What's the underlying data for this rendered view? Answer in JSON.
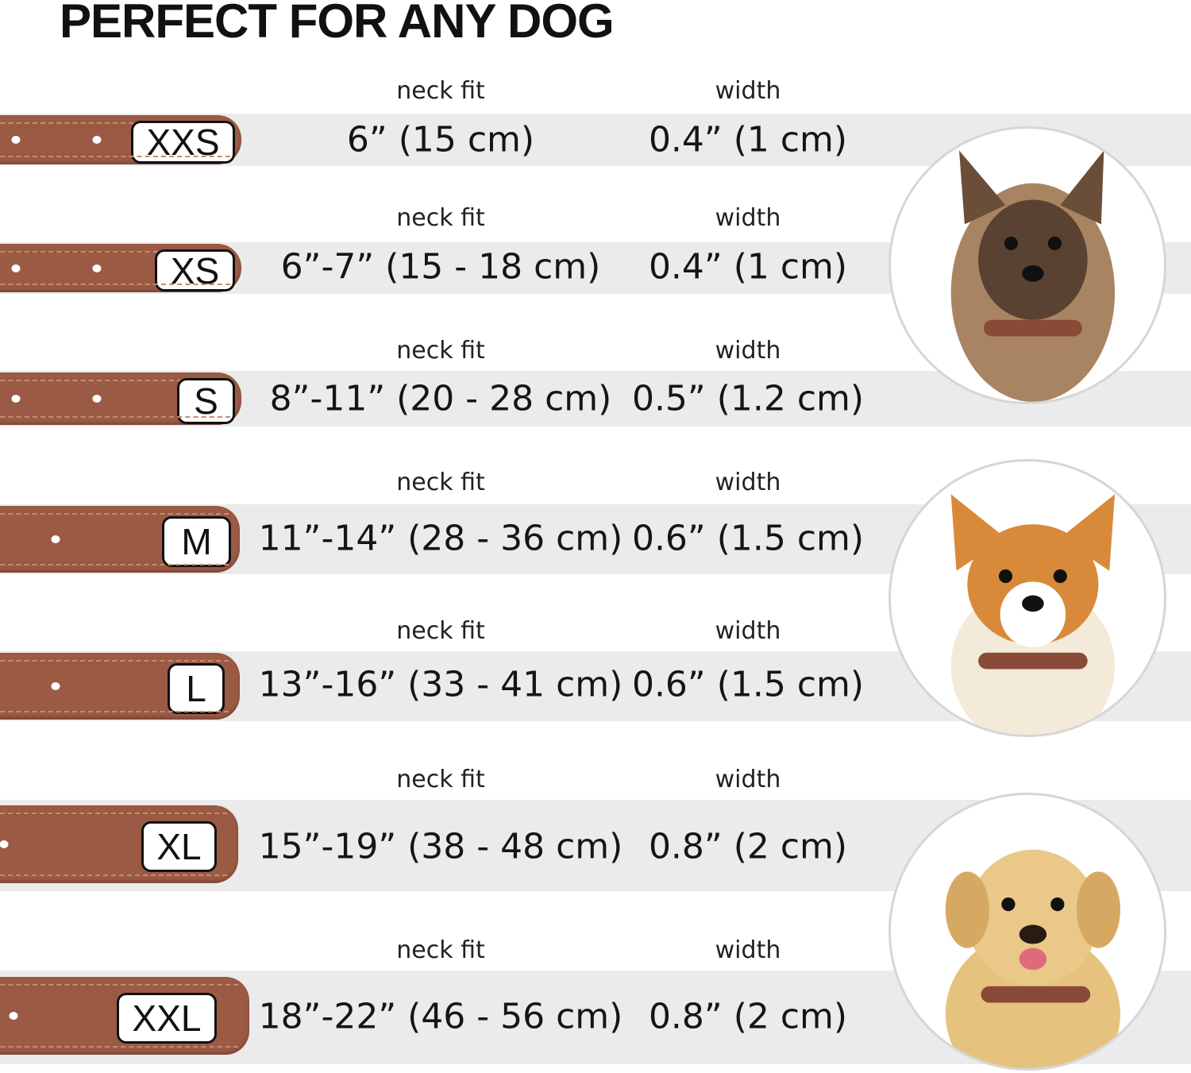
{
  "title": "PERFECT FOR ANY DOG",
  "column_labels": {
    "neck": "neck fit",
    "width": "width"
  },
  "colors": {
    "collar": "#9b5a44",
    "band": "#ebebeb"
  },
  "sizes": [
    {
      "size": "XXS",
      "neck_fit": "6” (15 cm)",
      "width": "0.4” (1 cm)"
    },
    {
      "size": "XS",
      "neck_fit": "6”-7” (15 - 18 cm)",
      "width": "0.4” (1 cm)"
    },
    {
      "size": "S",
      "neck_fit": "8”-11” (20 - 28 cm)",
      "width": "0.5” (1.2 cm)"
    },
    {
      "size": "M",
      "neck_fit": "11”-14” (28 - 36 cm)",
      "width": "0.6” (1.5 cm)"
    },
    {
      "size": "L",
      "neck_fit": "13”-16” (33 - 41 cm)",
      "width": "0.6” (1.5 cm)"
    },
    {
      "size": "XL",
      "neck_fit": "15”-19” (38 - 48 cm)",
      "width": "0.8” (2 cm)"
    },
    {
      "size": "XXL",
      "neck_fit": "18”-22” (46 - 56 cm)",
      "width": "0.8” (2 cm)"
    }
  ],
  "dog_images": [
    "small-terrier-photo",
    "corgi-photo",
    "labrador-photo"
  ]
}
